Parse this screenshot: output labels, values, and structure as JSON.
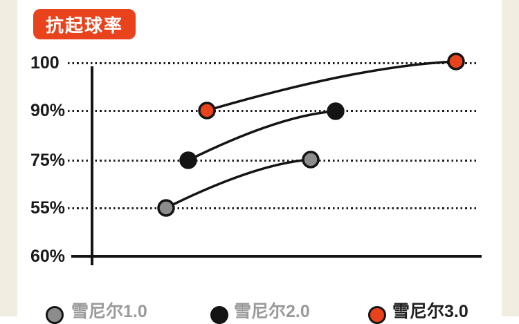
{
  "page": {
    "background": "#ffffff",
    "side_strip_color": "#F1EDE1"
  },
  "header": {
    "badge_label": "抗起球率",
    "badge_bg": "#E8431C",
    "badge_text_color": "#ffffff"
  },
  "colors": {
    "accent_orange": "#E8431C",
    "line_black": "#141414",
    "dot_gray": "#8C8C8C",
    "tick_label": "#1A1A1A",
    "legend_muted_text": "#9A9A9A",
    "legend_dark_text": "#1F1F1F"
  },
  "chart_data": {
    "type": "line",
    "title": "抗起球率",
    "xlabel": "",
    "ylabel": "",
    "y_tick_labels": [
      "100",
      "90%",
      "75%",
      "55%",
      "60%"
    ],
    "grid": "dotted horizontal gridlines at 100, 90%, 75%, 55%; solid axes; no x tick labels",
    "legend_position": "bottom",
    "line_color": "#141414",
    "dot_radius": 11,
    "series": [
      {
        "name": "雪尼尔1.0",
        "color": "#8C8C8C",
        "values": [
          "55%",
          "75%"
        ],
        "points": [
          {
            "x": 240,
            "y": 301
          },
          {
            "x": 449,
            "y": 231
          }
        ]
      },
      {
        "name": "雪尼尔2.0",
        "color": "#141414",
        "values": [
          "75%",
          "90%"
        ],
        "points": [
          {
            "x": 272,
            "y": 232
          },
          {
            "x": 485,
            "y": 161
          }
        ]
      },
      {
        "name": "雪尼尔3.0",
        "color": "#E8431C",
        "values": [
          "90%",
          "100"
        ],
        "points": [
          {
            "x": 299,
            "y": 160
          },
          {
            "x": 659,
            "y": 89
          }
        ]
      }
    ]
  },
  "legend": {
    "items": [
      {
        "label": "雪尼尔1.0",
        "dot_color": "#8C8C8C",
        "text_color": "#9A9A9A"
      },
      {
        "label": "雪尼尔2.0",
        "dot_color": "#141414",
        "text_color": "#9A9A9A"
      },
      {
        "label": "雪尼尔3.0",
        "dot_color": "#E8431C",
        "text_color": "#1F1F1F"
      }
    ]
  }
}
